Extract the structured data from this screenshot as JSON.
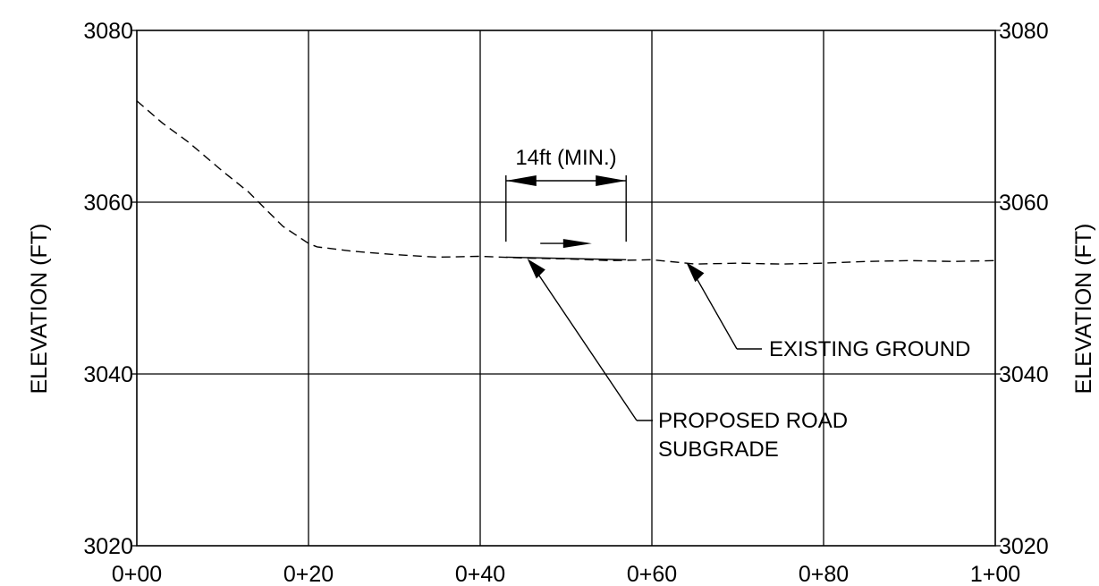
{
  "chart_data": {
    "type": "line",
    "title": "",
    "xlabel": "",
    "ylabel": "ELEVATION (FT)",
    "ylabel_right": "ELEVATION (FT)",
    "xlim": [
      0,
      100
    ],
    "ylim": [
      3020,
      3080
    ],
    "grid": true,
    "x_ticks": [
      {
        "value": 0,
        "label": "0+00"
      },
      {
        "value": 20,
        "label": "0+20"
      },
      {
        "value": 40,
        "label": "0+40"
      },
      {
        "value": 60,
        "label": "0+60"
      },
      {
        "value": 80,
        "label": "0+80"
      },
      {
        "value": 100,
        "label": "1+00"
      }
    ],
    "y_ticks": [
      {
        "value": 3020,
        "label": "3020"
      },
      {
        "value": 3040,
        "label": "3040"
      },
      {
        "value": 3060,
        "label": "3060"
      },
      {
        "value": 3080,
        "label": "3080"
      }
    ],
    "series": [
      {
        "name": "EXISTING GROUND",
        "style": "dashed",
        "x": [
          0,
          3,
          6,
          10,
          13,
          17,
          20,
          21,
          25,
          30,
          35,
          40,
          45,
          50,
          55,
          60,
          65,
          70,
          75,
          80,
          85,
          90,
          95,
          100
        ],
        "y": [
          3071.8,
          3069.2,
          3067.0,
          3063.6,
          3061.2,
          3057.2,
          3055.2,
          3054.8,
          3054.3,
          3053.9,
          3053.6,
          3053.7,
          3053.5,
          3053.4,
          3053.2,
          3053.3,
          3052.8,
          3052.9,
          3052.8,
          3052.9,
          3053.1,
          3053.2,
          3053.1,
          3053.2
        ]
      },
      {
        "name": "PROPOSED ROAD SUBGRADE",
        "style": "solid",
        "x": [
          43,
          57
        ],
        "y": [
          3053.6,
          3053.3
        ]
      }
    ],
    "annotations": [
      {
        "text": "14ft (MIN.)",
        "type": "dimension",
        "x_start": 43,
        "x_end": 57,
        "level": 3062.5
      },
      {
        "text": "EXISTING GROUND",
        "type": "leader",
        "target_x": 64,
        "target_y": 3053.0
      },
      {
        "text": "PROPOSED ROAD",
        "text2": "SUBGRADE",
        "type": "leader",
        "target_x": 45.5,
        "target_y": 3053.4
      },
      {
        "text": "",
        "type": "direction-arrow",
        "x_start": 47,
        "x_end": 53,
        "level": 3055.2
      }
    ]
  }
}
